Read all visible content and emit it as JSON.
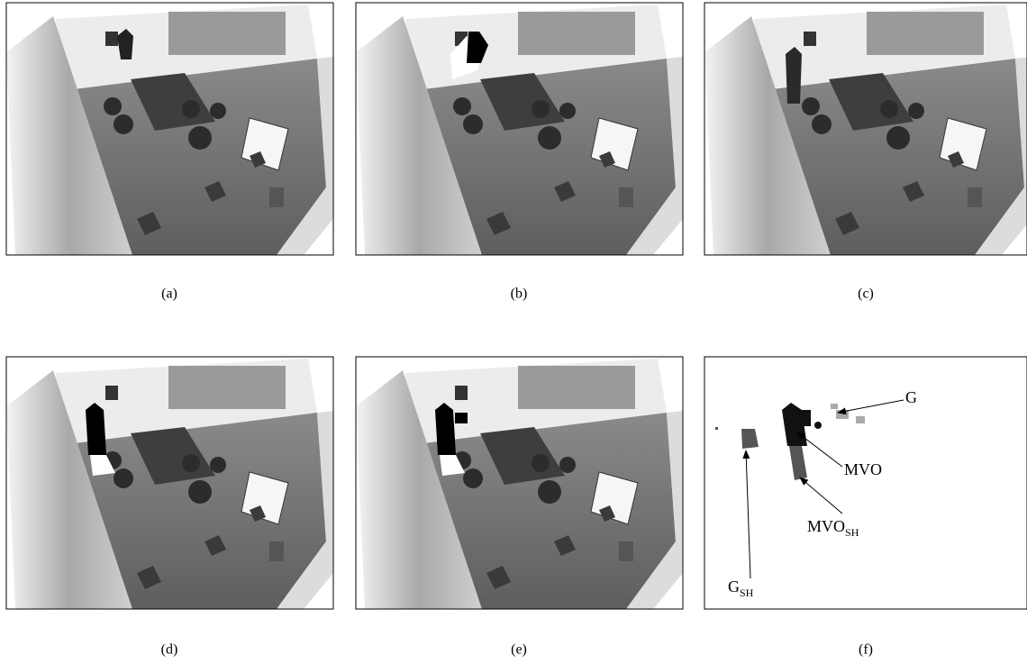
{
  "panels": [
    {
      "caption": "(a)"
    },
    {
      "caption": "(b)"
    },
    {
      "caption": "(c)"
    },
    {
      "caption": "(d)"
    },
    {
      "caption": "(e)"
    },
    {
      "caption": "(f)"
    }
  ],
  "annotations": [
    {
      "text": "G"
    },
    {
      "text": "MVO"
    },
    {
      "text": "MVO",
      "subscript": "SH"
    },
    {
      "text": "G",
      "subscript": "SH"
    }
  ]
}
